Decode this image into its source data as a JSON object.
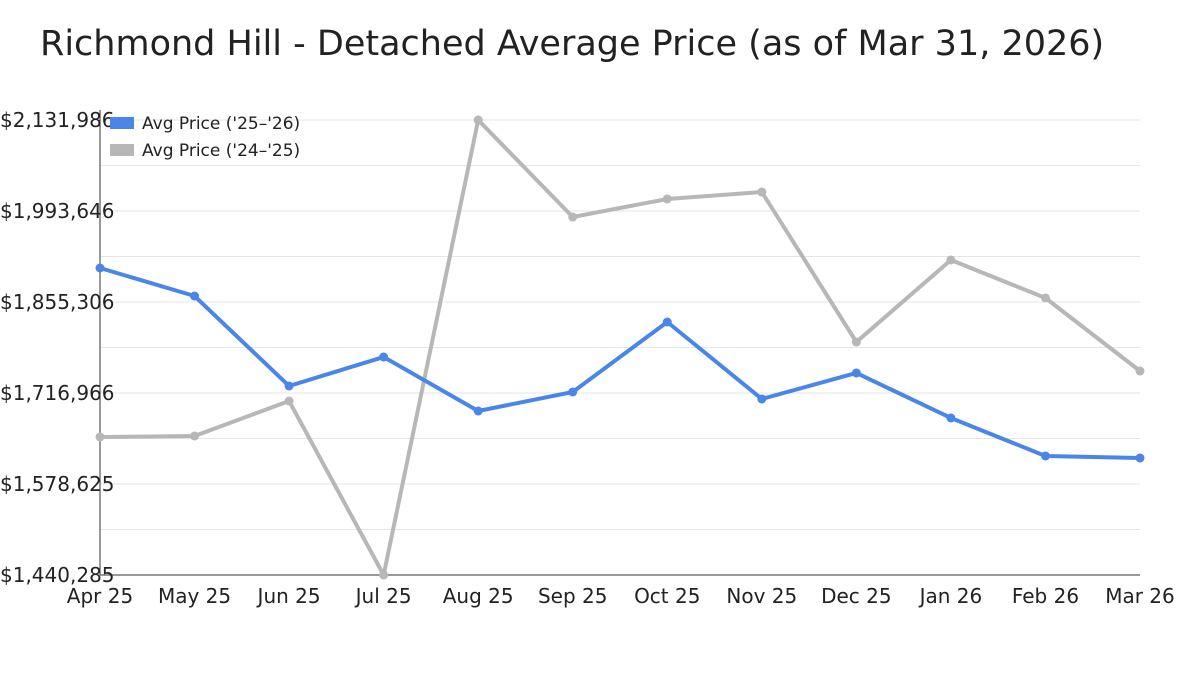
{
  "chart_data": {
    "type": "line",
    "title": "Richmond Hill - Detached Average Price (as of Mar 31, 2026)",
    "xlabel": "",
    "ylabel": "",
    "categories": [
      "Apr 25",
      "May 25",
      "Jun 25",
      "Jul 25",
      "Aug 25",
      "Sep 25",
      "Oct 25",
      "Nov 25",
      "Dec 25",
      "Jan 26",
      "Feb 26",
      "Mar 26"
    ],
    "ylim": [
      1440285,
      2131986
    ],
    "y_ticks": [
      1440285,
      1578625,
      1716966,
      1855306,
      1993646,
      2131986
    ],
    "y_tick_labels": [
      "$1,440,285",
      "$1,578,625",
      "$1,716,966",
      "$1,855,306",
      "$1,993,646",
      "$2,131,986"
    ],
    "grid": true,
    "legend_position": "top-left",
    "series": [
      {
        "name": "Avg Price ('25–'26)",
        "color": "#4a86e8",
        "values": [
          1907000,
          1864400,
          1727600,
          1771700,
          1689600,
          1718500,
          1824900,
          1707900,
          1747400,
          1679000,
          1621200,
          1618200
        ]
      },
      {
        "name": "Avg Price ('24–'25)",
        "color": "#b7b7b7",
        "values": [
          1650100,
          1651600,
          1704800,
          1440285,
          2131986,
          1984500,
          2011900,
          2022500,
          1794500,
          1919200,
          1861400,
          1750400
        ]
      }
    ]
  }
}
